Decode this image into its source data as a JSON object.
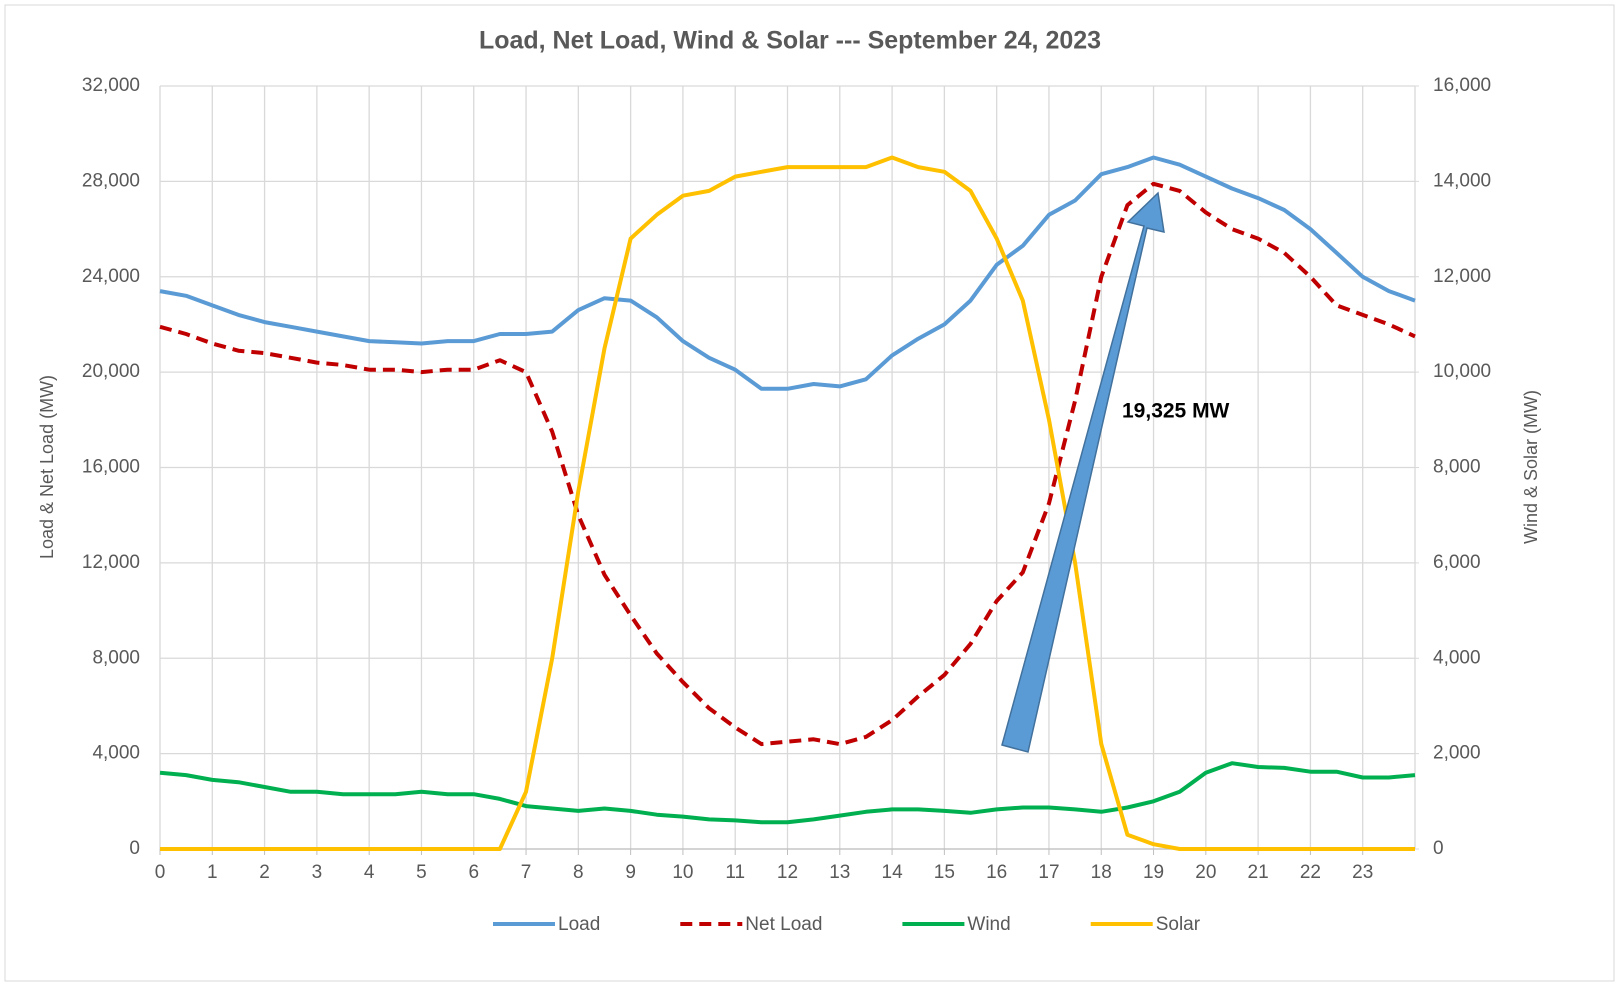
{
  "chart_data": {
    "type": "line",
    "title": "Load, Net Load, Wind & Solar --- September 24, 2023",
    "y_label": "Load & Net Load (MW)",
    "y2_label": "Wind & Solar (MW)",
    "annotation": "19,325 MW",
    "grid": true,
    "legend": "bottom",
    "x": [
      0,
      0.5,
      1,
      1.5,
      2,
      2.5,
      3,
      3.5,
      4,
      4.5,
      5,
      5.5,
      6,
      6.5,
      7,
      7.5,
      8,
      8.5,
      9,
      9.5,
      10,
      10.5,
      11,
      11.5,
      12,
      12.5,
      13,
      13.5,
      14,
      14.5,
      15,
      15.5,
      16,
      16.5,
      17,
      17.5,
      18,
      18.5,
      19,
      19.5,
      20,
      20.5,
      21,
      21.5,
      22,
      22.5,
      23,
      23.5,
      24
    ],
    "xlim": [
      0,
      24
    ],
    "xticks": [
      0,
      1,
      2,
      3,
      4,
      5,
      6,
      7,
      8,
      9,
      10,
      11,
      12,
      13,
      14,
      15,
      16,
      17,
      18,
      19,
      20,
      21,
      22,
      23
    ],
    "ylim": [
      0,
      32000
    ],
    "yticks": [
      0,
      {
        "value": 4000,
        "label": "4,000"
      },
      {
        "value": 8000,
        "label": "8,000"
      },
      {
        "value": 12000,
        "label": "12,000"
      },
      {
        "value": 16000,
        "label": "16,000"
      },
      {
        "value": 20000,
        "label": "20,000"
      },
      {
        "value": 24000,
        "label": "24,000"
      },
      {
        "value": 28000,
        "label": "28,000"
      },
      {
        "value": 32000,
        "label": "32,000"
      }
    ],
    "y2lim": [
      0,
      16000
    ],
    "y2ticks": [
      0,
      {
        "value": 2000,
        "label": "2,000"
      },
      {
        "value": 4000,
        "label": "4,000"
      },
      {
        "value": 6000,
        "label": "6,000"
      },
      {
        "value": 8000,
        "label": "8,000"
      },
      {
        "value": 10000,
        "label": "10,000"
      },
      {
        "value": 12000,
        "label": "12,000"
      },
      {
        "value": 14000,
        "label": "14,000"
      },
      {
        "value": 16000,
        "label": "16,000"
      }
    ],
    "series": [
      {
        "name": "Load",
        "color": "#5b9bd5",
        "dashed": false,
        "values": [
          23400,
          23200,
          22800,
          22400,
          22100,
          21900,
          21700,
          21500,
          21300,
          21250,
          21200,
          21300,
          21300,
          21600,
          21600,
          21700,
          22600,
          23100,
          23000,
          22300,
          21300,
          20600,
          20100,
          19300,
          19300,
          19500,
          19400,
          19700,
          20700,
          21400,
          22000,
          23000,
          24500,
          25300,
          26600,
          27200,
          28300,
          28600,
          29000,
          28700,
          28200,
          27700,
          27300,
          26800,
          26000,
          25000,
          24000,
          23400,
          23000
        ]
      },
      {
        "name": "Net Load",
        "color": "#c00000",
        "dashed": true,
        "values": [
          21900,
          21600,
          21200,
          20900,
          20800,
          20600,
          20400,
          20300,
          20100,
          20100,
          20000,
          20100,
          20100,
          20500,
          20000,
          17500,
          14000,
          11500,
          9800,
          8200,
          7000,
          5900,
          5100,
          4400,
          4500,
          4600,
          4400,
          4700,
          5400,
          6400,
          7300,
          8600,
          10400,
          11600,
          14500,
          18800,
          24000,
          27000,
          27900,
          27600,
          26700,
          26000,
          25600,
          25000,
          24000,
          22800,
          22400,
          22000,
          21500
        ]
      },
      {
        "name": "Wind",
        "color": "#00b050",
        "dashed": false,
        "axis": "y2",
        "values": [
          1600,
          1550,
          1450,
          1400,
          1300,
          1200,
          1200,
          1150,
          1150,
          1150,
          1200,
          1150,
          1150,
          1050,
          900,
          850,
          800,
          850,
          800,
          720,
          680,
          620,
          600,
          560,
          560,
          620,
          700,
          780,
          830,
          830,
          800,
          760,
          830,
          870,
          870,
          830,
          780,
          870,
          1000,
          1200,
          1600,
          1800,
          1720,
          1700,
          1620,
          1620,
          1500,
          1500,
          1550
        ]
      },
      {
        "name": "Solar",
        "color": "#ffc000",
        "dashed": false,
        "axis": "y2",
        "values": [
          0,
          0,
          0,
          0,
          0,
          0,
          0,
          0,
          0,
          0,
          0,
          0,
          0,
          0,
          1200,
          4000,
          7500,
          10500,
          12800,
          13300,
          13700,
          13800,
          14100,
          14200,
          14300,
          14300,
          14300,
          14300,
          14500,
          14300,
          14200,
          13800,
          12800,
          11500,
          9000,
          6000,
          2200,
          300,
          100,
          0,
          0,
          0,
          0,
          0,
          0,
          0,
          0,
          0,
          0
        ]
      }
    ]
  }
}
